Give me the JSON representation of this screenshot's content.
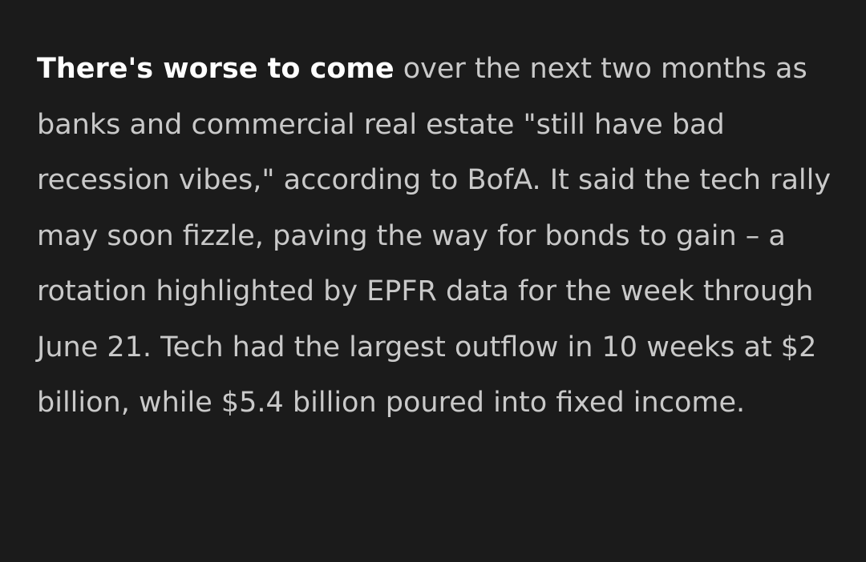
{
  "article": {
    "lead": "There's worse to come",
    "body": " over the next two months as banks and commercial real estate \"still have bad recession vibes,\" according to BofA. It said the tech rally may soon fizzle, paving the way for bonds to gain – a rotation highlighted by EPFR data for the week through June 21. Tech had the largest outflow in 10 weeks at $2 billion, while $5.4 billion poured into fixed income."
  }
}
